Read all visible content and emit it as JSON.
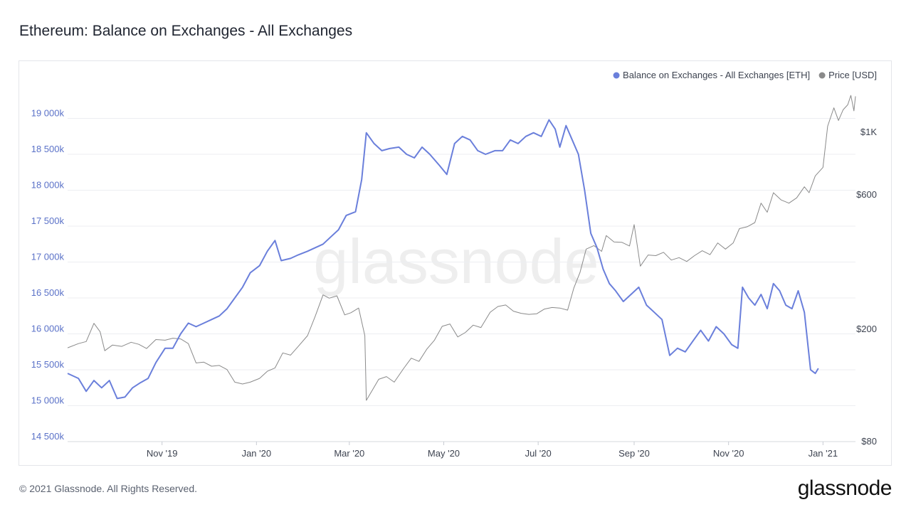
{
  "page": {
    "title": "Ethereum: Balance on Exchanges - All Exchanges",
    "copyright": "© 2021 Glassnode. All Rights Reserved.",
    "logo_text": "glassnode",
    "watermark": "glassnode"
  },
  "colors": {
    "balance": "#6a7fdb",
    "price": "#8a8a8a",
    "axis_left_text": "#5b72c8",
    "axis_text": "#3d4350",
    "grid": "#eceef2"
  },
  "chart_data": {
    "type": "line",
    "title": "Ethereum: Balance on Exchanges - All Exchanges",
    "legend_position": "top-right",
    "grid": true,
    "x_ticks": [
      "Nov '19",
      "Jan '20",
      "Mar '20",
      "May '20",
      "Jul '20",
      "Sep '20",
      "Nov '20",
      "Jan '21"
    ],
    "x_range": [
      "2019-09-01",
      "2021-01-22"
    ],
    "y_left": {
      "label": "",
      "ticks": [
        14500000,
        15000000,
        15500000,
        16000000,
        16500000,
        17000000,
        17500000,
        18000000,
        18500000,
        19000000
      ],
      "tick_labels": [
        "14 500k",
        "15 000k",
        "15 500k",
        "16 000k",
        "16 500k",
        "17 000k",
        "17 500k",
        "18 000k",
        "18 500k",
        "19 000k"
      ],
      "range": [
        14500000,
        19500000
      ]
    },
    "y_right": {
      "label": "",
      "scale": "log",
      "ticks": [
        80,
        200,
        600,
        1000
      ],
      "tick_labels": [
        "$80",
        "$200",
        "$600",
        "$1K"
      ],
      "range": [
        80,
        1500
      ]
    },
    "series": [
      {
        "name": "Balance on Exchanges - All Exchanges [ETH]",
        "axis": "left",
        "points": [
          [
            "2019-09-01",
            15450000
          ],
          [
            "2019-09-08",
            15380000
          ],
          [
            "2019-09-13",
            15200000
          ],
          [
            "2019-09-18",
            15350000
          ],
          [
            "2019-09-23",
            15250000
          ],
          [
            "2019-09-28",
            15350000
          ],
          [
            "2019-10-03",
            15100000
          ],
          [
            "2019-10-08",
            15120000
          ],
          [
            "2019-10-13",
            15250000
          ],
          [
            "2019-10-18",
            15320000
          ],
          [
            "2019-10-23",
            15380000
          ],
          [
            "2019-10-28",
            15600000
          ],
          [
            "2019-11-03",
            15800000
          ],
          [
            "2019-11-08",
            15800000
          ],
          [
            "2019-11-13",
            16000000
          ],
          [
            "2019-11-18",
            16150000
          ],
          [
            "2019-11-23",
            16100000
          ],
          [
            "2019-11-28",
            16150000
          ],
          [
            "2019-12-03",
            16200000
          ],
          [
            "2019-12-08",
            16250000
          ],
          [
            "2019-12-13",
            16350000
          ],
          [
            "2019-12-18",
            16500000
          ],
          [
            "2019-12-23",
            16650000
          ],
          [
            "2019-12-28",
            16850000
          ],
          [
            "2020-01-03",
            16950000
          ],
          [
            "2020-01-08",
            17150000
          ],
          [
            "2020-01-13",
            17300000
          ],
          [
            "2020-01-17",
            17020000
          ],
          [
            "2020-01-23",
            17050000
          ],
          [
            "2020-01-28",
            17100000
          ],
          [
            "2020-02-03",
            17150000
          ],
          [
            "2020-02-08",
            17200000
          ],
          [
            "2020-02-13",
            17250000
          ],
          [
            "2020-02-18",
            17350000
          ],
          [
            "2020-02-23",
            17450000
          ],
          [
            "2020-02-28",
            17650000
          ],
          [
            "2020-03-05",
            17700000
          ],
          [
            "2020-03-09",
            18150000
          ],
          [
            "2020-03-12",
            18800000
          ],
          [
            "2020-03-17",
            18650000
          ],
          [
            "2020-03-22",
            18550000
          ],
          [
            "2020-03-27",
            18580000
          ],
          [
            "2020-04-02",
            18600000
          ],
          [
            "2020-04-07",
            18500000
          ],
          [
            "2020-04-12",
            18450000
          ],
          [
            "2020-04-17",
            18600000
          ],
          [
            "2020-04-22",
            18500000
          ],
          [
            "2020-04-28",
            18350000
          ],
          [
            "2020-05-03",
            18220000
          ],
          [
            "2020-05-08",
            18650000
          ],
          [
            "2020-05-13",
            18750000
          ],
          [
            "2020-05-18",
            18700000
          ],
          [
            "2020-05-23",
            18550000
          ],
          [
            "2020-05-28",
            18500000
          ],
          [
            "2020-06-03",
            18550000
          ],
          [
            "2020-06-08",
            18550000
          ],
          [
            "2020-06-13",
            18700000
          ],
          [
            "2020-06-18",
            18650000
          ],
          [
            "2020-06-23",
            18750000
          ],
          [
            "2020-06-28",
            18800000
          ],
          [
            "2020-07-03",
            18750000
          ],
          [
            "2020-07-08",
            18980000
          ],
          [
            "2020-07-12",
            18850000
          ],
          [
            "2020-07-15",
            18600000
          ],
          [
            "2020-07-19",
            18900000
          ],
          [
            "2020-07-23",
            18700000
          ],
          [
            "2020-07-27",
            18500000
          ],
          [
            "2020-07-31",
            18000000
          ],
          [
            "2020-08-04",
            17400000
          ],
          [
            "2020-08-08",
            17200000
          ],
          [
            "2020-08-12",
            16900000
          ],
          [
            "2020-08-16",
            16700000
          ],
          [
            "2020-08-20",
            16600000
          ],
          [
            "2020-08-25",
            16450000
          ],
          [
            "2020-08-30",
            16550000
          ],
          [
            "2020-09-04",
            16650000
          ],
          [
            "2020-09-09",
            16400000
          ],
          [
            "2020-09-14",
            16300000
          ],
          [
            "2020-09-19",
            16200000
          ],
          [
            "2020-09-24",
            15700000
          ],
          [
            "2020-09-29",
            15800000
          ],
          [
            "2020-10-04",
            15750000
          ],
          [
            "2020-10-09",
            15900000
          ],
          [
            "2020-10-14",
            16050000
          ],
          [
            "2020-10-19",
            15900000
          ],
          [
            "2020-10-24",
            16100000
          ],
          [
            "2020-10-29",
            16000000
          ],
          [
            "2020-11-03",
            15850000
          ],
          [
            "2020-11-07",
            15800000
          ],
          [
            "2020-11-10",
            16650000
          ],
          [
            "2020-11-14",
            16500000
          ],
          [
            "2020-11-18",
            16400000
          ],
          [
            "2020-11-22",
            16550000
          ],
          [
            "2020-11-26",
            16350000
          ],
          [
            "2020-11-30",
            16700000
          ],
          [
            "2020-12-04",
            16600000
          ],
          [
            "2020-12-08",
            16400000
          ],
          [
            "2020-12-12",
            16350000
          ],
          [
            "2020-12-16",
            16600000
          ],
          [
            "2020-12-20",
            16300000
          ],
          [
            "2020-12-24",
            15500000
          ],
          [
            "2020-12-27",
            15450000
          ],
          [
            "2020-12-29",
            15520000
          ]
        ]
      },
      {
        "name": "Price [USD]",
        "axis": "right",
        "points": [
          [
            "2019-09-01",
            172
          ],
          [
            "2019-09-08",
            178
          ],
          [
            "2019-09-13",
            181
          ],
          [
            "2019-09-18",
            210
          ],
          [
            "2019-09-22",
            196
          ],
          [
            "2019-09-25",
            168
          ],
          [
            "2019-09-30",
            176
          ],
          [
            "2019-10-06",
            174
          ],
          [
            "2019-10-12",
            180
          ],
          [
            "2019-10-17",
            177
          ],
          [
            "2019-10-22",
            171
          ],
          [
            "2019-10-28",
            184
          ],
          [
            "2019-11-03",
            183
          ],
          [
            "2019-11-08",
            186
          ],
          [
            "2019-11-13",
            185
          ],
          [
            "2019-11-18",
            178
          ],
          [
            "2019-11-23",
            152
          ],
          [
            "2019-11-28",
            153
          ],
          [
            "2019-12-03",
            148
          ],
          [
            "2019-12-08",
            149
          ],
          [
            "2019-12-13",
            144
          ],
          [
            "2019-12-18",
            130
          ],
          [
            "2019-12-23",
            128
          ],
          [
            "2019-12-28",
            130
          ],
          [
            "2020-01-03",
            134
          ],
          [
            "2020-01-08",
            142
          ],
          [
            "2020-01-13",
            146
          ],
          [
            "2020-01-18",
            165
          ],
          [
            "2020-01-23",
            162
          ],
          [
            "2020-01-28",
            174
          ],
          [
            "2020-02-03",
            190
          ],
          [
            "2020-02-08",
            223
          ],
          [
            "2020-02-13",
            265
          ],
          [
            "2020-02-17",
            258
          ],
          [
            "2020-02-22",
            263
          ],
          [
            "2020-02-27",
            225
          ],
          [
            "2020-03-02",
            229
          ],
          [
            "2020-03-07",
            238
          ],
          [
            "2020-03-11",
            190
          ],
          [
            "2020-03-12",
            112
          ],
          [
            "2020-03-16",
            122
          ],
          [
            "2020-03-20",
            133
          ],
          [
            "2020-03-25",
            136
          ],
          [
            "2020-03-30",
            130
          ],
          [
            "2020-04-05",
            145
          ],
          [
            "2020-04-10",
            158
          ],
          [
            "2020-04-15",
            154
          ],
          [
            "2020-04-20",
            170
          ],
          [
            "2020-04-25",
            183
          ],
          [
            "2020-04-30",
            205
          ],
          [
            "2020-05-05",
            209
          ],
          [
            "2020-05-10",
            188
          ],
          [
            "2020-05-15",
            195
          ],
          [
            "2020-05-20",
            207
          ],
          [
            "2020-05-25",
            203
          ],
          [
            "2020-05-31",
            230
          ],
          [
            "2020-06-05",
            241
          ],
          [
            "2020-06-10",
            244
          ],
          [
            "2020-06-15",
            232
          ],
          [
            "2020-06-20",
            228
          ],
          [
            "2020-06-25",
            226
          ],
          [
            "2020-06-30",
            227
          ],
          [
            "2020-07-05",
            236
          ],
          [
            "2020-07-10",
            239
          ],
          [
            "2020-07-15",
            238
          ],
          [
            "2020-07-20",
            234
          ],
          [
            "2020-07-24",
            280
          ],
          [
            "2020-07-28",
            318
          ],
          [
            "2020-08-01",
            385
          ],
          [
            "2020-08-06",
            396
          ],
          [
            "2020-08-11",
            378
          ],
          [
            "2020-08-14",
            430
          ],
          [
            "2020-08-19",
            408
          ],
          [
            "2020-08-24",
            407
          ],
          [
            "2020-08-29",
            395
          ],
          [
            "2020-09-01",
            470
          ],
          [
            "2020-09-05",
            335
          ],
          [
            "2020-09-10",
            367
          ],
          [
            "2020-09-15",
            365
          ],
          [
            "2020-09-20",
            375
          ],
          [
            "2020-09-25",
            352
          ],
          [
            "2020-09-30",
            359
          ],
          [
            "2020-10-05",
            348
          ],
          [
            "2020-10-10",
            365
          ],
          [
            "2020-10-15",
            380
          ],
          [
            "2020-10-20",
            368
          ],
          [
            "2020-10-25",
            405
          ],
          [
            "2020-10-30",
            385
          ],
          [
            "2020-11-04",
            405
          ],
          [
            "2020-11-08",
            455
          ],
          [
            "2020-11-13",
            462
          ],
          [
            "2020-11-18",
            478
          ],
          [
            "2020-11-22",
            560
          ],
          [
            "2020-11-26",
            520
          ],
          [
            "2020-11-30",
            610
          ],
          [
            "2020-12-05",
            575
          ],
          [
            "2020-12-10",
            560
          ],
          [
            "2020-12-15",
            585
          ],
          [
            "2020-12-20",
            640
          ],
          [
            "2020-12-23",
            610
          ],
          [
            "2020-12-27",
            700
          ],
          [
            "2021-01-01",
            750
          ],
          [
            "2021-01-04",
            1050
          ],
          [
            "2021-01-08",
            1220
          ],
          [
            "2021-01-11",
            1100
          ],
          [
            "2021-01-14",
            1200
          ],
          [
            "2021-01-17",
            1250
          ],
          [
            "2021-01-19",
            1350
          ],
          [
            "2021-01-21",
            1190
          ],
          [
            "2021-01-22",
            1340
          ]
        ]
      }
    ]
  }
}
